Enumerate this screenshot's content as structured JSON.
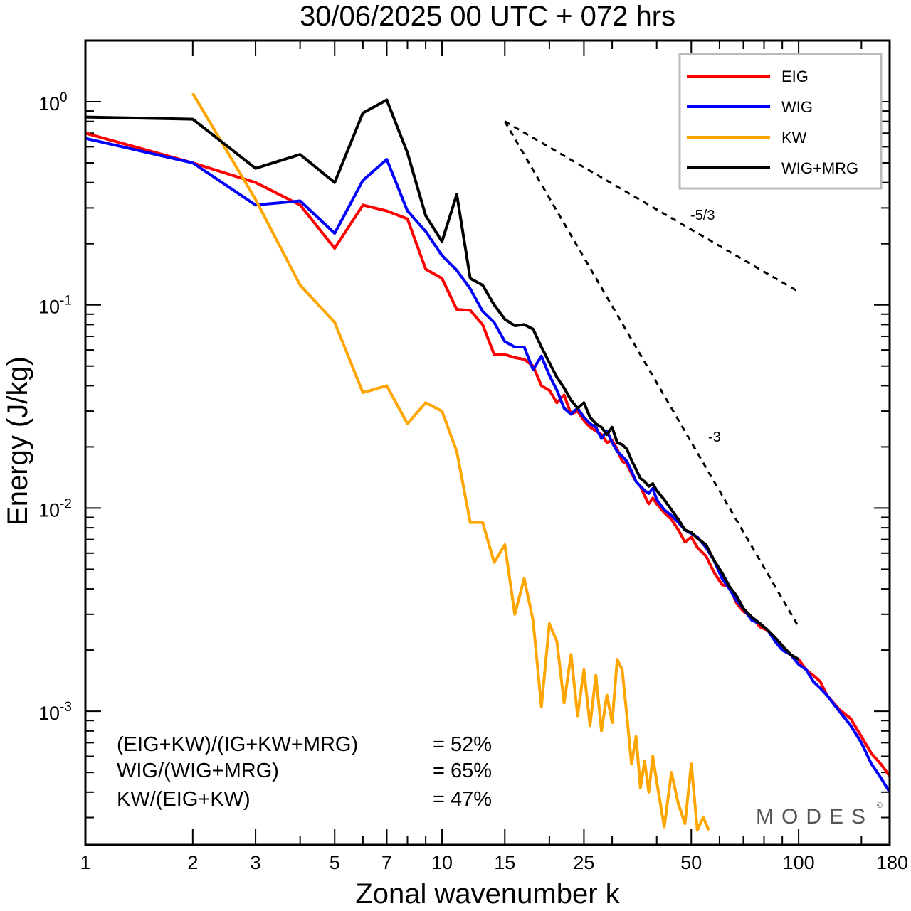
{
  "chart_data": {
    "type": "line",
    "title": "30/06/2025  00 UTC  + 072 hrs",
    "xlabel": "Zonal wavenumber k",
    "ylabel": "Energy (J/kg)",
    "xscale": "log",
    "yscale": "log",
    "xlim": [
      1,
      180
    ],
    "ylim": [
      0.00022,
      2.0
    ],
    "grid": false,
    "legend_position": "top-right",
    "x_ticks": [
      1,
      2,
      3,
      5,
      7,
      10,
      15,
      25,
      50,
      100,
      180
    ],
    "x_tick_labels": [
      "1",
      "2",
      "3",
      "5",
      "7",
      "10",
      "15",
      "25",
      "50",
      "100",
      "180"
    ],
    "y_ticks": [
      1,
      0.1,
      0.01,
      0.001
    ],
    "y_tick_labels": [
      {
        "base": "10",
        "exp": "0"
      },
      {
        "base": "10",
        "exp": "-1"
      },
      {
        "base": "10",
        "exp": "-2"
      },
      {
        "base": "10",
        "exp": "-3"
      }
    ],
    "series": [
      {
        "name": "EIG",
        "color": "#ff0000",
        "x": [
          1,
          2,
          3,
          4,
          5,
          6,
          7,
          8,
          9,
          10,
          11,
          12,
          13,
          14,
          15,
          16,
          17,
          18,
          19,
          20,
          21,
          22,
          23,
          24,
          25,
          26,
          27,
          28,
          29,
          30,
          31,
          32,
          33,
          34,
          35,
          36,
          37,
          38,
          39,
          40,
          42,
          44,
          46,
          48,
          50,
          52,
          55,
          58,
          61,
          64,
          67,
          70,
          74,
          78,
          82,
          86,
          90,
          95,
          100,
          105,
          110,
          115,
          120,
          130,
          140,
          150,
          160,
          170,
          180
        ],
        "y": [
          0.7,
          0.5,
          0.4,
          0.31,
          0.19,
          0.31,
          0.29,
          0.265,
          0.15,
          0.135,
          0.095,
          0.094,
          0.08,
          0.057,
          0.057,
          0.055,
          0.054,
          0.05,
          0.04,
          0.038,
          0.033,
          0.036,
          0.029,
          0.03,
          0.027,
          0.025,
          0.024,
          0.023,
          0.021,
          0.0215,
          0.0195,
          0.017,
          0.0165,
          0.0148,
          0.0135,
          0.0128,
          0.0115,
          0.0105,
          0.0112,
          0.0105,
          0.0095,
          0.0088,
          0.0078,
          0.0068,
          0.0072,
          0.0064,
          0.0058,
          0.0048,
          0.0042,
          0.0041,
          0.0034,
          0.0031,
          0.0029,
          0.0026,
          0.0025,
          0.0023,
          0.0021,
          0.0019,
          0.0018,
          0.0016,
          0.0015,
          0.0014,
          0.0012,
          0.00102,
          0.00092,
          0.00075,
          0.00062,
          0.00055,
          0.00048
        ]
      },
      {
        "name": "WIG",
        "color": "#0000ff",
        "x": [
          1,
          2,
          3,
          4,
          5,
          6,
          7,
          8,
          9,
          10,
          11,
          12,
          13,
          14,
          15,
          16,
          17,
          18,
          19,
          20,
          21,
          22,
          23,
          24,
          25,
          26,
          27,
          28,
          29,
          30,
          31,
          32,
          33,
          34,
          35,
          36,
          37,
          38,
          39,
          40,
          42,
          44,
          46,
          48,
          50,
          52,
          55,
          58,
          61,
          64,
          67,
          70,
          74,
          78,
          82,
          86,
          90,
          95,
          100,
          105,
          110,
          115,
          120,
          130,
          140,
          150,
          160,
          170,
          180
        ],
        "y": [
          0.66,
          0.5,
          0.31,
          0.325,
          0.225,
          0.41,
          0.52,
          0.29,
          0.23,
          0.175,
          0.148,
          0.12,
          0.093,
          0.082,
          0.066,
          0.062,
          0.062,
          0.048,
          0.056,
          0.045,
          0.038,
          0.031,
          0.029,
          0.031,
          0.028,
          0.026,
          0.025,
          0.022,
          0.024,
          0.021,
          0.019,
          0.018,
          0.017,
          0.0152,
          0.0135,
          0.0128,
          0.0122,
          0.0118,
          0.0125,
          0.011,
          0.0098,
          0.0092,
          0.0085,
          0.0078,
          0.0075,
          0.0072,
          0.0064,
          0.0055,
          0.0045,
          0.004,
          0.0035,
          0.0032,
          0.0028,
          0.0027,
          0.0025,
          0.0022,
          0.002,
          0.0019,
          0.0017,
          0.0016,
          0.0014,
          0.0013,
          0.0012,
          0.001,
          0.00085,
          0.0007,
          0.00055,
          0.00047,
          0.0004
        ]
      },
      {
        "name": "KW",
        "color": "#ffa500",
        "x": [
          2,
          3,
          4,
          5,
          6,
          7,
          8,
          9,
          10,
          11,
          12,
          13,
          14,
          15,
          16,
          17,
          18,
          19,
          20,
          21,
          22,
          23,
          24,
          25,
          26,
          27,
          28,
          29,
          30,
          31,
          32,
          33,
          34,
          35,
          36,
          37,
          38,
          39,
          40,
          42,
          44,
          46,
          48,
          50,
          52,
          54,
          56
        ],
        "y": [
          1.1,
          0.33,
          0.125,
          0.082,
          0.037,
          0.04,
          0.026,
          0.033,
          0.03,
          0.019,
          0.0085,
          0.0085,
          0.0054,
          0.0066,
          0.003,
          0.0045,
          0.0028,
          0.00105,
          0.0027,
          0.0022,
          0.0011,
          0.0019,
          0.00095,
          0.0016,
          0.00085,
          0.0015,
          0.0008,
          0.0012,
          0.00088,
          0.0018,
          0.0016,
          0.00095,
          0.00055,
          0.00075,
          0.00042,
          0.00057,
          0.0004,
          0.0006,
          0.00045,
          0.00027,
          0.0005,
          0.00035,
          0.00028,
          0.00055,
          0.00026,
          0.0003,
          0.00026
        ]
      },
      {
        "name": "WIG+MRG",
        "color": "#000000",
        "x": [
          1,
          2,
          3,
          4,
          5,
          6,
          7,
          8,
          9,
          10,
          11,
          12,
          13,
          14,
          15,
          16,
          17,
          18,
          19,
          20,
          21,
          22,
          23,
          24,
          25,
          26,
          27,
          28,
          29,
          30,
          31,
          32,
          33,
          34,
          35,
          36,
          37,
          38,
          39,
          40,
          42,
          44,
          46,
          48,
          50,
          52,
          55,
          58,
          61,
          64,
          67,
          70,
          74,
          78,
          82,
          86,
          90,
          95,
          100
        ],
        "y": [
          0.84,
          0.82,
          0.47,
          0.55,
          0.4,
          0.88,
          1.02,
          0.56,
          0.275,
          0.205,
          0.35,
          0.135,
          0.125,
          0.1,
          0.085,
          0.079,
          0.08,
          0.076,
          0.062,
          0.052,
          0.044,
          0.039,
          0.034,
          0.031,
          0.033,
          0.028,
          0.026,
          0.025,
          0.023,
          0.025,
          0.021,
          0.0205,
          0.0195,
          0.0172,
          0.0155,
          0.014,
          0.0135,
          0.0128,
          0.0132,
          0.0122,
          0.011,
          0.0098,
          0.0088,
          0.0078,
          0.0076,
          0.0071,
          0.0066,
          0.0055,
          0.0048,
          0.0041,
          0.0037,
          0.0032,
          0.0029,
          0.0027,
          0.0025,
          0.0023,
          0.0021,
          0.0019,
          0.0018
        ]
      }
    ],
    "reference_slopes": [
      {
        "label": "-5/3",
        "x": [
          15,
          100
        ],
        "y": [
          0.8,
          0.116
        ]
      },
      {
        "label": "-3",
        "x": [
          15,
          100
        ],
        "y": [
          0.8,
          0.0026
        ]
      }
    ],
    "annotations": [
      {
        "text": "(EIG+KW)/(IG+KW+MRG)",
        "value": "= 52%"
      },
      {
        "text": "WIG/(WIG+MRG)",
        "value": "= 65%"
      },
      {
        "text": "KW/(EIG+KW)",
        "value": "= 47%"
      }
    ]
  },
  "watermark": {
    "text": "MODES",
    "copyright": "©"
  }
}
